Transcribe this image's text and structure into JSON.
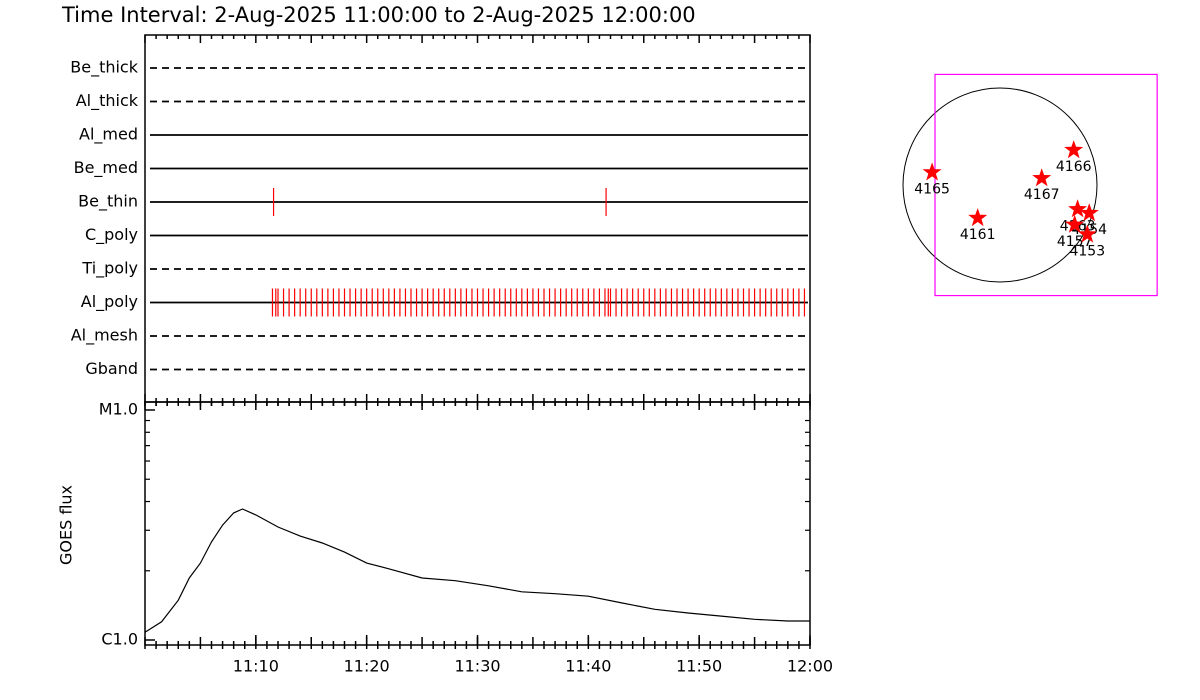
{
  "chart_data": [
    {
      "type": "timeline",
      "title": "Time Interval:  2-Aug-2025 11:00:00 to  2-Aug-2025 12:00:00",
      "categories": [
        "Be_thick",
        "Al_thick",
        "Al_med",
        "Be_med",
        "Be_thin",
        "C_poly",
        "Ti_poly",
        "Al_poly",
        "Al_mesh",
        "Gband"
      ],
      "line_styles": [
        "dashed",
        "dashed",
        "solid",
        "solid",
        "solid",
        "solid",
        "dashed",
        "solid",
        "dashed",
        "dashed"
      ],
      "events": [
        [],
        [],
        [],
        [],
        [
          11.6,
          41.6
        ],
        [],
        [],
        [
          11.5,
          11.8,
          12,
          12.5,
          13,
          13.5,
          14,
          14.5,
          15,
          15.5,
          16,
          16.5,
          17,
          17.5,
          18,
          18.5,
          19,
          19.5,
          20,
          20.5,
          21,
          21.5,
          22,
          22.5,
          23,
          23.5,
          24,
          24.5,
          25,
          25.5,
          26,
          26.5,
          27,
          27.5,
          28,
          28.5,
          29,
          29.5,
          30,
          30.5,
          31,
          31.5,
          32,
          32.5,
          33,
          33.5,
          34,
          34.5,
          35,
          35.5,
          36,
          36.5,
          37,
          37.5,
          38,
          38.5,
          39,
          39.5,
          40,
          40.5,
          41,
          41.5,
          41.8,
          42,
          42.5,
          43,
          43.5,
          44,
          44.5,
          45,
          45.5,
          46,
          46.5,
          47,
          47.5,
          48,
          48.5,
          49,
          49.5,
          50,
          50.5,
          51,
          51.5,
          52,
          52.5,
          53,
          53.5,
          54,
          54.5,
          55,
          55.5,
          56,
          56.5,
          57,
          57.5,
          58,
          58.5,
          59,
          59.5
        ],
        [],
        []
      ],
      "color": "#ff0000",
      "xlim": [
        0,
        60
      ]
    },
    {
      "type": "line",
      "y_label": "GOES flux",
      "x": [
        0,
        1.5,
        3,
        4,
        5,
        6,
        7,
        8,
        8.8,
        10,
        12,
        14,
        16,
        18,
        20,
        22,
        25,
        28,
        31,
        34,
        37,
        40,
        43,
        46,
        49,
        52,
        55,
        58,
        60
      ],
      "values": [
        1.08e-06,
        1.2e-06,
        1.49e-06,
        1.86e-06,
        2.16e-06,
        2.67e-06,
        3.16e-06,
        3.57e-06,
        3.71e-06,
        3.5e-06,
        3.1e-06,
        2.83e-06,
        2.64e-06,
        2.41e-06,
        2.16e-06,
        2.04e-06,
        1.86e-06,
        1.81e-06,
        1.72e-06,
        1.62e-06,
        1.59e-06,
        1.55e-06,
        1.45e-06,
        1.36e-06,
        1.31e-06,
        1.27e-06,
        1.23e-06,
        1.21e-06,
        1.21e-06
      ],
      "color": "#000000",
      "log_scale": true,
      "xlim": [
        0,
        60
      ],
      "xticks": [
        {
          "value": 10,
          "label": "11:10"
        },
        {
          "value": 20,
          "label": "11:20"
        },
        {
          "value": 30,
          "label": "11:30"
        },
        {
          "value": 40,
          "label": "11:40"
        },
        {
          "value": 50,
          "label": "11:50"
        },
        {
          "value": 60,
          "label": "12:00"
        }
      ],
      "ylim": [
        1e-06,
        1e-05
      ],
      "yticks": [
        {
          "value": 1e-05,
          "label": "M1.0"
        },
        {
          "value": 1e-06,
          "label": "C1.0"
        }
      ]
    },
    {
      "type": "map",
      "points": [
        {
          "label": "4165",
          "x": -0.7,
          "y": 0.13
        },
        {
          "label": "4166",
          "x": 0.76,
          "y": 0.36
        },
        {
          "label": "4167",
          "x": 0.43,
          "y": 0.07
        },
        {
          "label": "4161",
          "x": -0.23,
          "y": -0.34
        },
        {
          "label": "4163",
          "x": 0.8,
          "y": -0.25
        },
        {
          "label": "4154",
          "x": 0.92,
          "y": -0.29
        },
        {
          "label": "4157",
          "x": 0.77,
          "y": -0.41
        },
        {
          "label": "4153",
          "x": 0.9,
          "y": -0.51
        }
      ],
      "color": "#ff0000",
      "fov_color": "#ff00ff",
      "fov_xlim": [
        -0.67,
        1.62
      ],
      "fov_ylim": [
        -1.14,
        1.14
      ]
    }
  ]
}
